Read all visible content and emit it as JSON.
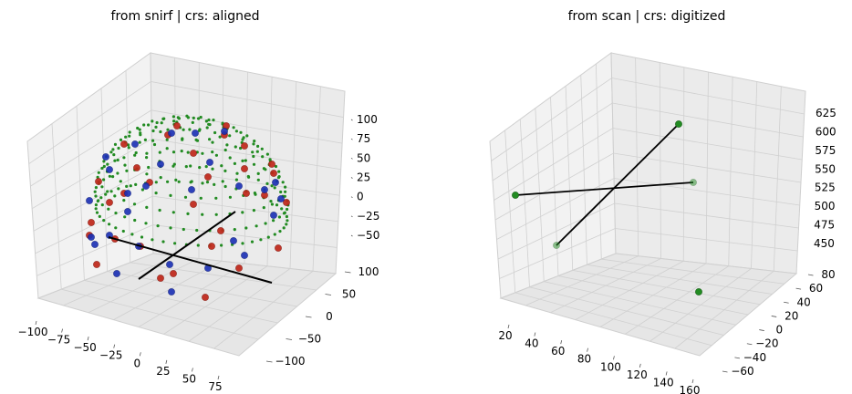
{
  "chart_data": [
    {
      "type": "scatter",
      "title": "from snirf | crs: aligned",
      "xlabel": "",
      "ylabel": "",
      "zlabel": "",
      "projection": "3d",
      "xlim": [
        -100,
        90
      ],
      "ylim": [
        -120,
        110
      ],
      "zlim": [
        -70,
        115
      ],
      "xticks": [
        "−100",
        "−75",
        "−50",
        "−25",
        "0",
        "25",
        "50",
        "75"
      ],
      "yticks": [
        "100",
        "50",
        "0",
        "−50",
        "−100"
      ],
      "zticks": [
        "100",
        "75",
        "50",
        "25",
        "0",
        "−25",
        "−50"
      ],
      "grid": true,
      "series": [
        {
          "color": "#228b22",
          "marker": "small-dot",
          "role": "channels",
          "count_approx": 300
        },
        {
          "color": "#c0271a",
          "marker": "circle",
          "role": "sources",
          "count_approx": 32
        },
        {
          "color": "#1a2fb5",
          "marker": "circle",
          "role": "detectors",
          "count_approx": 28
        },
        {
          "color": "#000000",
          "marker": "line",
          "role": "axis-cross"
        }
      ]
    },
    {
      "type": "scatter",
      "title": "from scan | crs: digitized",
      "xlabel": "",
      "ylabel": "",
      "zlabel": "",
      "projection": "3d",
      "xlim": [
        10,
        165
      ],
      "ylim": [
        -70,
        90
      ],
      "zlim": [
        440,
        630
      ],
      "xticks": [
        "20",
        "40",
        "60",
        "80",
        "100",
        "120",
        "140",
        "160"
      ],
      "yticks": [
        "80",
        "60",
        "40",
        "20",
        "0",
        "−20",
        "−40",
        "−60"
      ],
      "zticks": [
        "625",
        "600",
        "575",
        "550",
        "525",
        "500",
        "475",
        "450"
      ],
      "grid": true,
      "series": [
        {
          "color": "#228b22",
          "marker": "circle",
          "role": "fiducials",
          "count": 5
        },
        {
          "color": "#000000",
          "marker": "line",
          "role": "axis-cross"
        }
      ]
    }
  ]
}
